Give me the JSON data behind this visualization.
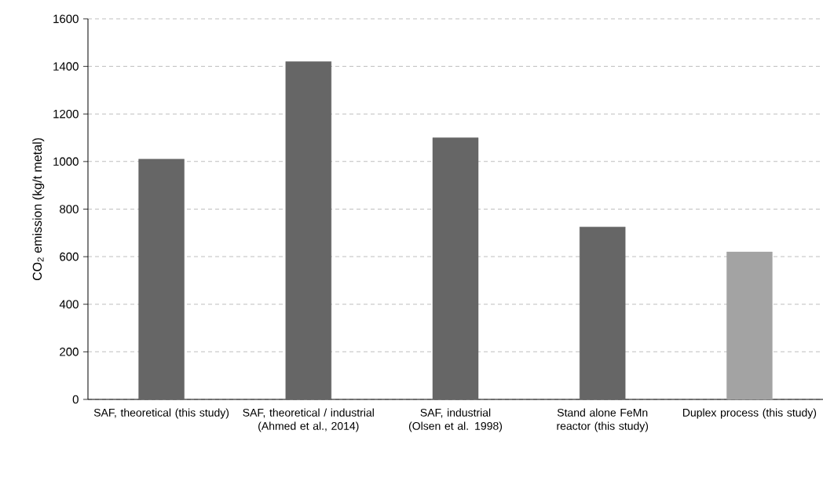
{
  "chart_data": {
    "type": "bar",
    "ylabel": "CO$_{2}$ emission (kg/t metal)",
    "categories": [
      "SAF, theoretical (this study)",
      "SAF, theoretical / industrial (Ahmed et al., 2014)",
      "SAF, industrial (Olsen et al. 1998)",
      "Stand alone FeMn reactor (this study)",
      "Duplex process (this study)"
    ],
    "values": [
      1010,
      1420,
      1100,
      725,
      620
    ],
    "colors": [
      "#666666",
      "#666666",
      "#666666",
      "#666666",
      "#a3a3a3"
    ],
    "ylim": [
      0,
      1600
    ],
    "yticks": [
      0,
      200,
      400,
      600,
      800,
      1000,
      1200,
      1400,
      1600
    ],
    "grid": "y"
  }
}
